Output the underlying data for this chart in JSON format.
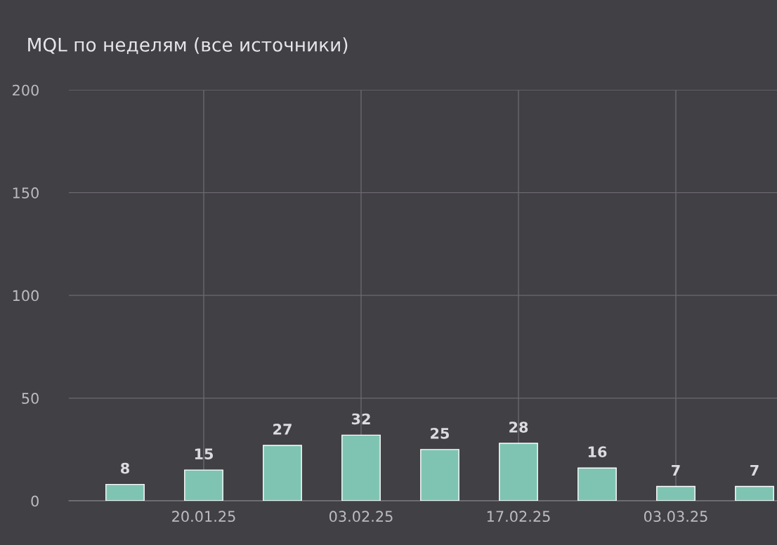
{
  "chart_data": {
    "type": "bar",
    "title": "MQL по неделям (все источники)",
    "x": [
      "2025-01-13",
      "2025-01-20",
      "2025-01-27",
      "2025-02-03",
      "2025-02-10",
      "2025-02-17",
      "2025-02-24",
      "2025-03-03",
      "2025-03-10"
    ],
    "values": [
      8,
      15,
      27,
      32,
      25,
      28,
      16,
      7,
      7
    ],
    "color": "#7fc4b2",
    "data_labels": true,
    "xlim": [
      "2025-01-08",
      "2025-03-12"
    ],
    "xticks": [
      {
        "value": "2025-01-20",
        "label": "20.01.25"
      },
      {
        "value": "2025-02-03",
        "label": "03.02.25"
      },
      {
        "value": "2025-02-17",
        "label": "17.02.25"
      },
      {
        "value": "2025-03-03",
        "label": "03.03.25"
      }
    ],
    "ylim": [
      0,
      200
    ],
    "yticks": [
      0,
      50,
      100,
      150,
      200
    ],
    "grid": true
  }
}
